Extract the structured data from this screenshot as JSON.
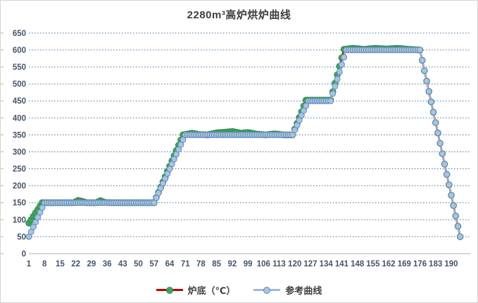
{
  "title": "2280m³高炉烘炉曲线",
  "legend": {
    "items": [
      {
        "label": "炉底（℃）"
      },
      {
        "label": "参考曲线"
      }
    ]
  },
  "colors": {
    "title_text": "#3f3f3f",
    "axis_text": "#44546a",
    "gridline": "#41719c",
    "axis_line": "#bfbfbf",
    "furnace_line": "#c00000",
    "furnace_marker_fill": "#3fa45b",
    "furnace_marker_stroke": "#2f8c4a",
    "reference_line": "#9cb9d9",
    "reference_marker_fill": "#a9c4e1",
    "reference_marker_stroke": "#6189b5"
  },
  "chart_data": {
    "type": "line",
    "title": "2280m³高炉烘炉曲线",
    "xlabel": "",
    "ylabel": "",
    "grid": "horizontal-dotted",
    "legend_position": "bottom",
    "x_axis": {
      "min": 1,
      "max": 199,
      "tick_step": 7,
      "ticks": [
        1,
        8,
        15,
        22,
        29,
        36,
        43,
        50,
        57,
        64,
        71,
        78,
        85,
        92,
        99,
        106,
        113,
        120,
        127,
        134,
        141,
        148,
        155,
        162,
        169,
        176,
        183,
        190
      ]
    },
    "y_axis": {
      "min": 0,
      "max": 650,
      "tick_step": 50,
      "ticks": [
        0,
        50,
        100,
        150,
        200,
        250,
        300,
        350,
        400,
        450,
        500,
        550,
        600,
        650
      ]
    },
    "sampling_step_hours": 1,
    "series": [
      {
        "name": "炉底（℃）",
        "line_color": "#c00000",
        "line_width": 2.6,
        "marker": "circle",
        "marker_radius": 4.3,
        "marker_fill": "#3fa45b",
        "marker_stroke": "#2f8c4a",
        "breakpoints": [
          [
            1,
            90
          ],
          [
            7,
            150
          ],
          [
            21,
            150
          ],
          [
            23,
            157
          ],
          [
            25,
            154
          ],
          [
            27,
            150
          ],
          [
            31,
            150
          ],
          [
            33,
            156
          ],
          [
            35,
            151
          ],
          [
            38,
            150
          ],
          [
            57,
            150
          ],
          [
            70,
            350
          ],
          [
            74,
            355
          ],
          [
            77,
            351
          ],
          [
            81,
            350
          ],
          [
            85,
            356
          ],
          [
            89,
            358
          ],
          [
            92,
            360
          ],
          [
            96,
            355
          ],
          [
            99,
            357
          ],
          [
            103,
            352
          ],
          [
            107,
            350
          ],
          [
            111,
            353
          ],
          [
            115,
            350
          ],
          [
            119,
            350
          ],
          [
            125,
            452
          ],
          [
            136,
            452
          ],
          [
            142,
            602
          ],
          [
            146,
            605
          ],
          [
            151,
            602
          ],
          [
            156,
            605
          ],
          [
            161,
            603
          ],
          [
            166,
            605
          ],
          [
            171,
            602
          ],
          [
            176,
            600
          ],
          [
            194,
            50
          ]
        ]
      },
      {
        "name": "参考曲线",
        "line_color": "#9cb9d9",
        "line_width": 2,
        "marker": "circle",
        "marker_radius": 4,
        "marker_fill": "#a9c4e1",
        "marker_stroke": "#6189b5",
        "breakpoints": [
          [
            1,
            50
          ],
          [
            8,
            150
          ],
          [
            57,
            150
          ],
          [
            71,
            350
          ],
          [
            119,
            350
          ],
          [
            126,
            450
          ],
          [
            136,
            450
          ],
          [
            143,
            600
          ],
          [
            176,
            600
          ],
          [
            194,
            50
          ]
        ]
      }
    ]
  }
}
